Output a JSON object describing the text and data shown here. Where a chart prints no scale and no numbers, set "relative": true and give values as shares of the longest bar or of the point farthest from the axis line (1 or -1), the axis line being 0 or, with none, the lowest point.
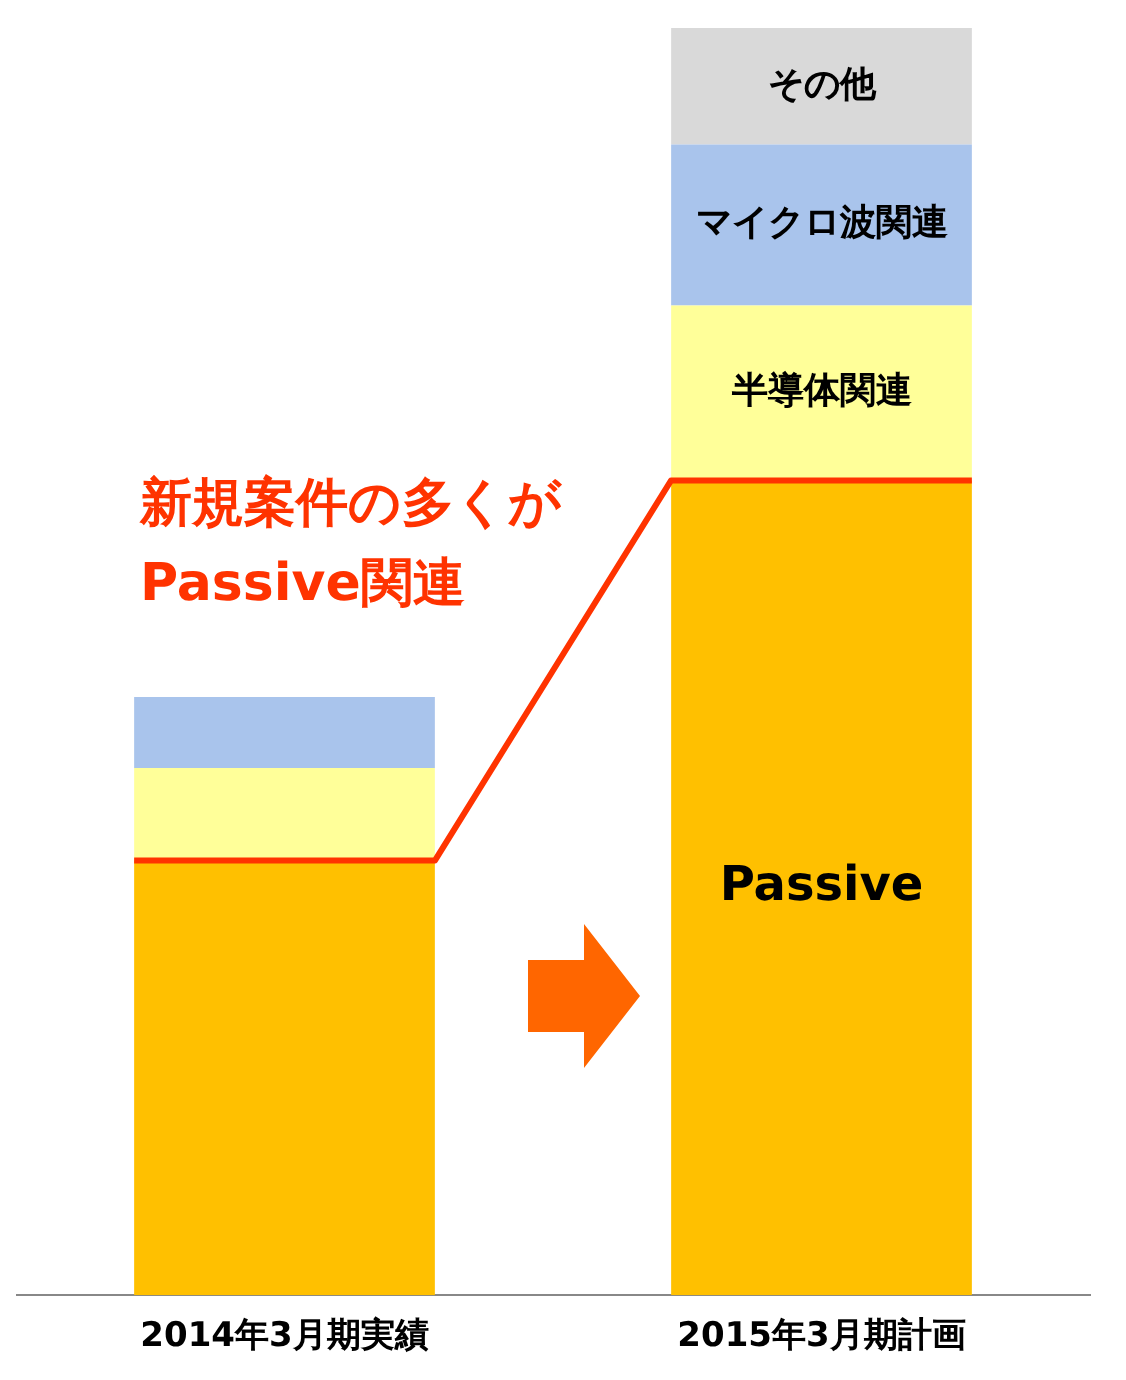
{
  "chart_data": {
    "type": "bar",
    "stacked": true,
    "relative": true,
    "categories": [
      "2014年3月期実績",
      "2015年3月期計画"
    ],
    "series": [
      {
        "name": "Passive",
        "color": "#ffc000",
        "values": [
          0.343,
          0.643
        ]
      },
      {
        "name": "半導体関連",
        "color": "#ffff99",
        "values": [
          0.073,
          0.138
        ]
      },
      {
        "name": "マイクロ波関連",
        "color": "#a9c4ec",
        "values": [
          0.056,
          0.127
        ]
      },
      {
        "name": "その他",
        "color": "#d9d9d9",
        "values": [
          null,
          0.092
        ]
      }
    ],
    "annotations": [
      "新規案件の多くが\nPassive関連"
    ],
    "legend": false,
    "grid": false
  }
}
